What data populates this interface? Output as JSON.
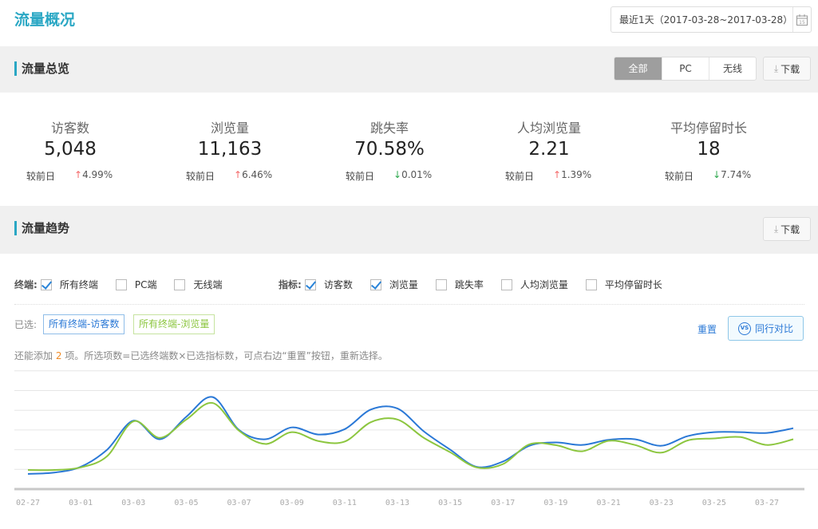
{
  "page_title": "流量概况",
  "date_range": "最近1天（2017-03-28~2017-03-28）",
  "overview": {
    "title": "流量总览",
    "segments": [
      "全部",
      "PC",
      "无线"
    ],
    "download": "下载",
    "compare_label": "较前日",
    "stats": [
      {
        "label": "访客数",
        "value": "5,048",
        "change": "4.99%",
        "direction": "up"
      },
      {
        "label": "浏览量",
        "value": "11,163",
        "change": "6.46%",
        "direction": "up"
      },
      {
        "label": "跳失率",
        "value": "70.58%",
        "change": "0.01%",
        "direction": "down"
      },
      {
        "label": "人均浏览量",
        "value": "2.21",
        "change": "1.39%",
        "direction": "up"
      },
      {
        "label": "平均停留时长",
        "value": "18",
        "change": "7.74%",
        "direction": "down"
      }
    ]
  },
  "trend": {
    "title": "流量趋势",
    "download": "下载",
    "terminal_label": "终端:",
    "terminals": [
      {
        "label": "所有终端",
        "checked": true
      },
      {
        "label": "PC端",
        "checked": false
      },
      {
        "label": "无线端",
        "checked": false
      }
    ],
    "metric_label": "指标:",
    "metrics": [
      {
        "label": "访客数",
        "checked": true
      },
      {
        "label": "浏览量",
        "checked": true
      },
      {
        "label": "跳失率",
        "checked": false
      },
      {
        "label": "人均浏览量",
        "checked": false
      },
      {
        "label": "平均停留时长",
        "checked": false
      }
    ],
    "selected_label": "已选:",
    "selected": [
      "所有终端-访客数",
      "所有终端-浏览量"
    ],
    "reset": "重置",
    "compare_button": "同行对比",
    "hint_pre": "还能添加 ",
    "hint_count": "2",
    "hint_post": " 项。所选项数=已选终端数×已选指标数，可点右边“重置”按钮，重新选择。"
  },
  "colors": {
    "accent": "#2aa7c4",
    "visitors": "#2a78d6",
    "pageviews": "#8cc63f",
    "up": "#f46a6a",
    "down": "#2fa84f"
  },
  "chart_data": {
    "type": "line",
    "x": [
      "02-27",
      "02-28",
      "03-01",
      "03-02",
      "03-03",
      "03-04",
      "03-05",
      "03-06",
      "03-07",
      "03-08",
      "03-09",
      "03-10",
      "03-11",
      "03-12",
      "03-13",
      "03-14",
      "03-15",
      "03-16",
      "03-17",
      "03-18",
      "03-19",
      "03-20",
      "03-21",
      "03-22",
      "03-23",
      "03-24",
      "03-25",
      "03-26",
      "03-27",
      "03-28"
    ],
    "xticks": [
      "02-27",
      "03-01",
      "03-03",
      "03-05",
      "03-07",
      "03-09",
      "03-11",
      "03-13",
      "03-15",
      "03-17",
      "03-19",
      "03-21",
      "03-23",
      "03-25",
      "03-27"
    ],
    "ylim": [
      0,
      6
    ],
    "grid": true,
    "series": [
      {
        "name": "所有终端-访客数",
        "color": "#2a78d6",
        "values": [
          0.77,
          0.84,
          1.13,
          2.0,
          3.47,
          2.53,
          3.67,
          4.67,
          3.0,
          2.53,
          3.13,
          2.77,
          3.04,
          4.04,
          4.09,
          2.93,
          2.0,
          1.13,
          1.4,
          2.2,
          2.37,
          2.24,
          2.5,
          2.53,
          2.2,
          2.69,
          2.89,
          2.89,
          2.85,
          3.09
        ]
      },
      {
        "name": "所有终端-浏览量",
        "color": "#8cc63f",
        "values": [
          0.97,
          0.97,
          1.1,
          1.67,
          3.44,
          2.6,
          3.53,
          4.37,
          2.96,
          2.29,
          2.89,
          2.44,
          2.41,
          3.4,
          3.53,
          2.6,
          1.87,
          1.1,
          1.27,
          2.27,
          2.23,
          1.92,
          2.45,
          2.24,
          1.85,
          2.47,
          2.57,
          2.64,
          2.24,
          2.53
        ]
      }
    ]
  }
}
